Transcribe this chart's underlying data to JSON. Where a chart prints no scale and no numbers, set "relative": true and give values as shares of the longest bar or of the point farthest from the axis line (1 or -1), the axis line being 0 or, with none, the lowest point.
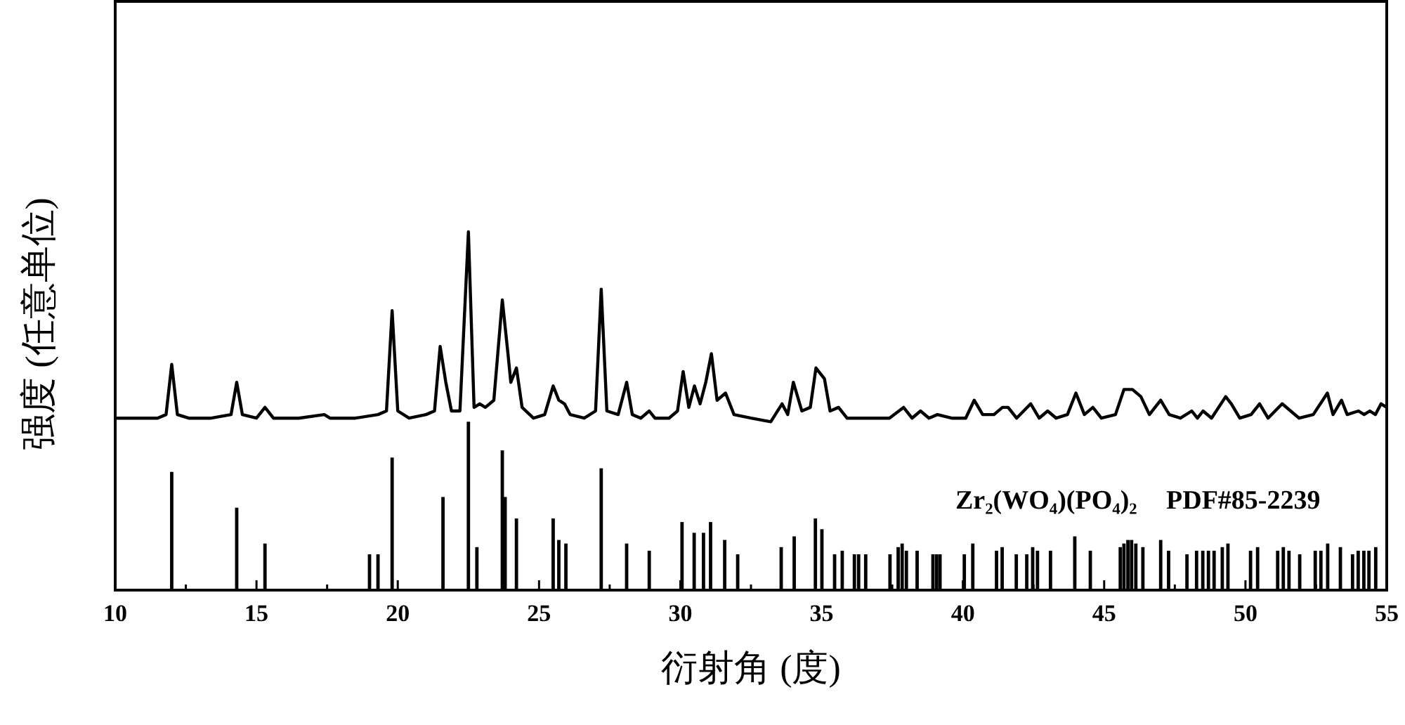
{
  "chart_data": {
    "type": "line",
    "relative": true,
    "xlabel": "衍射角 (度)",
    "ylabel": "强度 (任意单位)",
    "xlim": [
      10,
      55
    ],
    "tick_labels": "x",
    "xticks": [
      10,
      {
        "value": 12.5,
        "label": null
      },
      15,
      {
        "value": 17.5,
        "label": null
      },
      20,
      {
        "value": 22.5,
        "label": null
      },
      25,
      {
        "value": 27.5,
        "label": null
      },
      30,
      {
        "value": 32.5,
        "label": null
      },
      35,
      {
        "value": 37.5,
        "label": null
      },
      40,
      {
        "value": 42.5,
        "label": null
      },
      45,
      {
        "value": 47.5,
        "label": null
      },
      50,
      {
        "value": 52.5,
        "label": null
      },
      55
    ],
    "annotations": [
      "Zr₂(WO₄)(PO₄)₂",
      "PDF#85-2239"
    ],
    "series": [
      {
        "color": "#000000",
        "x": [
          10.0,
          10.8,
          11.5,
          11.8,
          12.0,
          12.2,
          12.6,
          13.4,
          14.1,
          14.3,
          14.5,
          15.0,
          15.3,
          15.6,
          16.5,
          17.4,
          17.6,
          18.5,
          19.3,
          19.6,
          19.8,
          20.0,
          20.4,
          21.0,
          21.3,
          21.5,
          21.7,
          21.9,
          22.2,
          22.5,
          22.7,
          22.9,
          23.1,
          23.4,
          23.7,
          23.9,
          24.0,
          24.2,
          24.4,
          24.8,
          25.2,
          25.5,
          25.7,
          25.9,
          26.1,
          26.6,
          27.0,
          27.2,
          27.4,
          27.8,
          28.1,
          28.3,
          28.6,
          28.9,
          29.1,
          29.6,
          29.9,
          30.1,
          30.3,
          30.5,
          30.7,
          30.9,
          31.1,
          31.3,
          31.6,
          31.9,
          32.5,
          33.2,
          33.6,
          33.8,
          34.0,
          34.3,
          34.6,
          34.8,
          35.1,
          35.3,
          35.6,
          35.9,
          36.8,
          37.4,
          37.9,
          38.2,
          38.5,
          38.8,
          39.1,
          39.6,
          40.1,
          40.4,
          40.7,
          41.1,
          41.4,
          41.6,
          41.9,
          42.4,
          42.7,
          43.0,
          43.3,
          43.7,
          44.0,
          44.3,
          44.6,
          44.9,
          45.4,
          45.7,
          46.0,
          46.3,
          46.6,
          47.0,
          47.3,
          47.7,
          48.1,
          48.3,
          48.5,
          48.8,
          49.3,
          49.5,
          49.8,
          50.2,
          50.5,
          50.8,
          51.3,
          51.6,
          51.9,
          52.4,
          52.9,
          53.1,
          53.4,
          53.6,
          54.0,
          54.2,
          54.4,
          54.6,
          54.8,
          55.0
        ],
        "values": [
          0.48,
          0.48,
          0.48,
          0.49,
          0.63,
          0.49,
          0.48,
          0.48,
          0.49,
          0.58,
          0.49,
          0.48,
          0.51,
          0.48,
          0.48,
          0.49,
          0.48,
          0.48,
          0.49,
          0.5,
          0.78,
          0.5,
          0.48,
          0.49,
          0.5,
          0.68,
          0.58,
          0.5,
          0.5,
          1.0,
          0.51,
          0.52,
          0.51,
          0.53,
          0.81,
          0.66,
          0.58,
          0.62,
          0.51,
          0.48,
          0.49,
          0.57,
          0.53,
          0.52,
          0.49,
          0.48,
          0.5,
          0.84,
          0.5,
          0.49,
          0.58,
          0.49,
          0.48,
          0.5,
          0.48,
          0.48,
          0.5,
          0.61,
          0.51,
          0.57,
          0.52,
          0.58,
          0.66,
          0.53,
          0.55,
          0.49,
          0.48,
          0.47,
          0.52,
          0.49,
          0.58,
          0.5,
          0.51,
          0.62,
          0.59,
          0.5,
          0.51,
          0.48,
          0.48,
          0.48,
          0.51,
          0.48,
          0.5,
          0.48,
          0.49,
          0.48,
          0.48,
          0.53,
          0.49,
          0.49,
          0.51,
          0.51,
          0.48,
          0.52,
          0.48,
          0.5,
          0.48,
          0.49,
          0.55,
          0.49,
          0.51,
          0.48,
          0.49,
          0.56,
          0.56,
          0.54,
          0.49,
          0.53,
          0.49,
          0.48,
          0.5,
          0.48,
          0.5,
          0.48,
          0.54,
          0.52,
          0.48,
          0.49,
          0.52,
          0.48,
          0.52,
          0.5,
          0.48,
          0.49,
          0.55,
          0.49,
          0.53,
          0.49,
          0.5,
          0.49,
          0.5,
          0.49,
          0.52,
          0.51
        ]
      },
      {
        "type": "bar",
        "color": "#000000",
        "x": [
          12.0,
          14.3,
          15.3,
          19.0,
          19.3,
          19.8,
          21.6,
          22.5,
          22.8,
          23.7,
          23.8,
          24.2,
          25.5,
          25.7,
          25.95,
          27.2,
          28.1,
          28.9,
          30.06,
          30.49,
          30.82,
          31.07,
          31.57,
          32.03,
          33.57,
          34.03,
          34.78,
          35.01,
          35.46,
          35.73,
          36.16,
          36.31,
          36.56,
          37.42,
          37.71,
          37.85,
          38.0,
          38.38,
          38.94,
          39.07,
          39.19,
          40.05,
          40.35,
          41.19,
          41.39,
          41.89,
          42.26,
          42.47,
          42.64,
          43.1,
          43.96,
          44.51,
          45.57,
          45.7,
          45.84,
          45.97,
          46.12,
          46.37,
          47.0,
          47.28,
          47.93,
          48.27,
          48.49,
          48.69,
          48.89,
          49.18,
          49.38,
          50.18,
          50.43,
          51.14,
          51.34,
          51.54,
          51.92,
          52.47,
          52.67,
          52.91,
          53.36,
          53.79,
          53.99,
          54.19,
          54.37,
          54.61
        ],
        "values": [
          0.33,
          0.23,
          0.13,
          0.1,
          0.1,
          0.37,
          0.26,
          0.47,
          0.12,
          0.39,
          0.26,
          0.2,
          0.2,
          0.14,
          0.13,
          0.34,
          0.13,
          0.11,
          0.19,
          0.16,
          0.16,
          0.19,
          0.14,
          0.1,
          0.12,
          0.15,
          0.2,
          0.17,
          0.1,
          0.11,
          0.1,
          0.1,
          0.1,
          0.1,
          0.12,
          0.13,
          0.11,
          0.11,
          0.1,
          0.1,
          0.1,
          0.1,
          0.13,
          0.11,
          0.12,
          0.1,
          0.1,
          0.12,
          0.11,
          0.11,
          0.15,
          0.11,
          0.12,
          0.13,
          0.14,
          0.14,
          0.13,
          0.12,
          0.14,
          0.11,
          0.1,
          0.11,
          0.11,
          0.11,
          0.11,
          0.12,
          0.13,
          0.11,
          0.12,
          0.11,
          0.12,
          0.11,
          0.1,
          0.11,
          0.11,
          0.13,
          0.12,
          0.1,
          0.11,
          0.11,
          0.11,
          0.12
        ]
      }
    ]
  }
}
